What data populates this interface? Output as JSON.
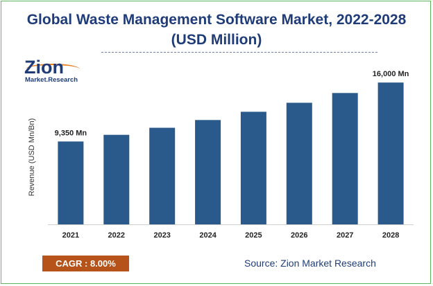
{
  "title_line1": "Global Waste Management Software Market, 2022-2028",
  "title_line2": "(USD Million)",
  "logo": {
    "main": "Zion",
    "sub": "Market.Research"
  },
  "cagr_label": "CAGR : 8.00%",
  "source": "Source: Zion Market Research",
  "colors": {
    "bar": "#2a5a8c",
    "title": "#1f3c78",
    "cagr_bg": "#b5531a",
    "frame": "#5cb85c"
  },
  "chart_data": {
    "type": "bar",
    "title": "Global Waste Management Software Market, 2022-2028 (USD Million)",
    "xlabel": "",
    "ylabel": "Revenue (USD Mn/Bn)",
    "categories": [
      "2021",
      "2022",
      "2023",
      "2024",
      "2025",
      "2026",
      "2027",
      "2028"
    ],
    "values": [
      9350,
      10100,
      10900,
      11770,
      12700,
      13720,
      14820,
      16000
    ],
    "data_labels": [
      {
        "index": 0,
        "text": "9,350 Mn"
      },
      {
        "index": 7,
        "text": "16,000 Mn"
      }
    ],
    "ylim": [
      0,
      17500
    ],
    "grid": false,
    "legend": "none"
  }
}
